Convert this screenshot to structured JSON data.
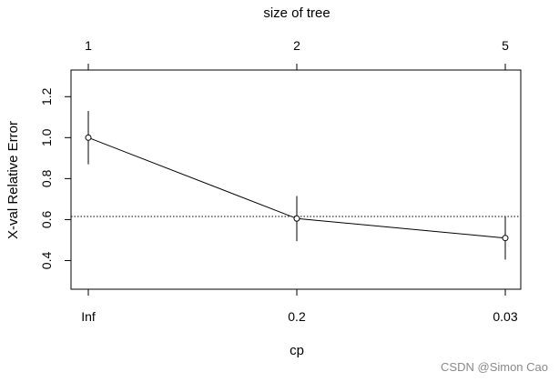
{
  "chart_data": {
    "type": "line",
    "title": "",
    "xlabel": "cp",
    "ylabel": "X-val Relative Error",
    "top_axis_label": "size of tree",
    "x_tick_labels": [
      "Inf",
      "0.2",
      "0.03"
    ],
    "top_tick_labels": [
      "1",
      "2",
      "5"
    ],
    "y_ticks": [
      0.4,
      0.6,
      0.8,
      1.0,
      1.2
    ],
    "y_tick_labels": [
      "0.4",
      "0.6",
      "0.8",
      "1.0",
      "1.2"
    ],
    "ylim": [
      0.26,
      1.33
    ],
    "points": [
      {
        "cp": "Inf",
        "size": "1",
        "y": 1.0,
        "ymin": 0.87,
        "ymax": 1.13
      },
      {
        "cp": "0.2",
        "size": "2",
        "y": 0.605,
        "ymin": 0.495,
        "ymax": 0.715
      },
      {
        "cp": "0.03",
        "size": "5",
        "y": 0.51,
        "ymin": 0.405,
        "ymax": 0.615
      }
    ],
    "reference_line": {
      "y": 0.615,
      "style": "dotted"
    },
    "grid": false,
    "legend": false
  },
  "watermark": "CSDN @Simon Cao"
}
